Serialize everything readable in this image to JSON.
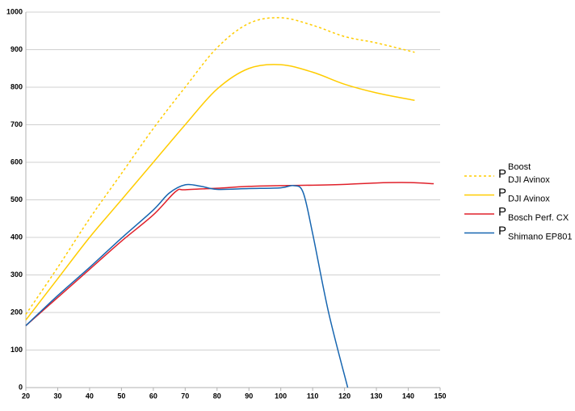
{
  "chart_data": {
    "type": "line",
    "xlim": [
      20,
      150
    ],
    "xticks": [
      20,
      30,
      40,
      50,
      60,
      70,
      80,
      90,
      100,
      110,
      120,
      130,
      140,
      150
    ],
    "ylim": [
      0,
      1000
    ],
    "yticks": [
      0,
      100,
      200,
      300,
      400,
      500,
      600,
      700,
      800,
      900,
      1000
    ],
    "grid": true,
    "legend": "right",
    "series": [
      {
        "name": "P",
        "name_sub": "DJI Avinox",
        "name_sup": "Boost",
        "color": "#ffcc00",
        "dashed": true,
        "x": [
          20,
          30,
          40,
          50,
          60,
          70,
          80,
          90,
          100,
          110,
          120,
          130,
          142
        ],
        "values": [
          195,
          320,
          450,
          570,
          690,
          800,
          905,
          970,
          985,
          965,
          935,
          918,
          893
        ]
      },
      {
        "name": "P",
        "name_sub": "DJI Avinox",
        "color": "#ffcc00",
        "dashed": false,
        "x": [
          20,
          30,
          40,
          50,
          60,
          70,
          80,
          90,
          100,
          110,
          120,
          130,
          142
        ],
        "values": [
          180,
          290,
          400,
          500,
          600,
          700,
          795,
          850,
          860,
          840,
          808,
          785,
          765
        ]
      },
      {
        "name": "P",
        "name_sub": "Bosch Perf. CX",
        "color": "#e0202a",
        "dashed": false,
        "x": [
          20,
          30,
          40,
          50,
          60,
          67,
          70,
          80,
          90,
          100,
          110,
          120,
          130,
          140,
          148
        ],
        "values": [
          165,
          240,
          315,
          390,
          460,
          522,
          527,
          531,
          536,
          538,
          539,
          541,
          545,
          546,
          543
        ]
      },
      {
        "name": "P",
        "name_sub": "Shimano EP801",
        "color": "#1665b0",
        "dashed": false,
        "x": [
          20,
          30,
          40,
          50,
          60,
          65,
          70,
          75,
          80,
          90,
          100,
          104,
          107,
          110,
          115,
          121
        ],
        "values": [
          165,
          245,
          320,
          398,
          473,
          518,
          540,
          536,
          528,
          530,
          532,
          538,
          520,
          410,
          200,
          0
        ]
      }
    ]
  }
}
